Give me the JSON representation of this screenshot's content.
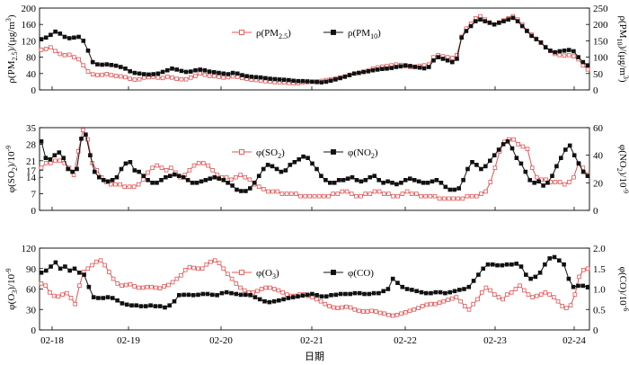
{
  "colors": {
    "left_series": "#e05555",
    "right_series": "#111111"
  },
  "xlabel": "日期",
  "x_tick_labels": [
    "02-18",
    "02-19",
    "02-20",
    "02-21",
    "02-22",
    "02-23",
    "02-24"
  ],
  "chart_data": [
    {
      "type": "line",
      "ylabel_left": "ρ(PM2.5)/(μg/m³)",
      "ylabel_right": "ρ(PM10)/(μg/m³)",
      "ylim_left": [
        0,
        200
      ],
      "ylim_right": [
        0,
        250
      ],
      "yticks_left": [
        "0",
        "40",
        "80",
        "120",
        "160",
        "200"
      ],
      "yticks_right": [
        "0",
        "50",
        "100",
        "150",
        "200",
        "250"
      ],
      "legend": [
        "ρ(PM2.5)",
        "ρ(PM10)"
      ],
      "legend_position": "top-center",
      "series": [
        {
          "name": "ρ(PM2.5)",
          "axis": "left",
          "marker": "open-square",
          "values": [
            98,
            100,
            104,
            95,
            88,
            85,
            86,
            80,
            75,
            60,
            45,
            38,
            36,
            37,
            39,
            36,
            34,
            33,
            31,
            27,
            25,
            26,
            30,
            31,
            32,
            30,
            29,
            32,
            30,
            27,
            26,
            26,
            30,
            34,
            40,
            37,
            34,
            34,
            32,
            30,
            31,
            33,
            32,
            29,
            27,
            25,
            24,
            23,
            21,
            20,
            19,
            19,
            18,
            17,
            16,
            16,
            18,
            19,
            20,
            21,
            22,
            24,
            26,
            28,
            30,
            33,
            37,
            40,
            42,
            44,
            47,
            52,
            55,
            57,
            58,
            60,
            62,
            61,
            58,
            56,
            57,
            59,
            60,
            62,
            80,
            85,
            82,
            80,
            78,
            85,
            130,
            150,
            162,
            175,
            180,
            172,
            165,
            160,
            165,
            170,
            175,
            180,
            172,
            160,
            145,
            135,
            125,
            115,
            105,
            95,
            88,
            85,
            84,
            85,
            82,
            75,
            60,
            50
          ]
        },
        {
          "name": "ρ(PM10)",
          "axis": "right",
          "marker": "filled-square",
          "values": [
            155,
            160,
            168,
            178,
            172,
            162,
            158,
            160,
            162,
            150,
            120,
            85,
            78,
            77,
            78,
            76,
            74,
            70,
            65,
            57,
            52,
            50,
            48,
            47,
            48,
            50,
            55,
            60,
            65,
            62,
            58,
            55,
            56,
            60,
            62,
            60,
            56,
            54,
            52,
            50,
            48,
            52,
            50,
            45,
            42,
            40,
            39,
            38,
            36,
            34,
            33,
            32,
            31,
            30,
            28,
            27,
            27,
            26,
            25,
            24,
            23,
            25,
            28,
            32,
            36,
            40,
            45,
            50,
            52,
            55,
            57,
            60,
            62,
            64,
            65,
            67,
            70,
            72,
            75,
            73,
            70,
            68,
            66,
            70,
            90,
            100,
            95,
            90,
            85,
            95,
            160,
            180,
            195,
            210,
            215,
            210,
            205,
            200,
            205,
            210,
            215,
            220,
            210,
            195,
            180,
            165,
            155,
            145,
            130,
            120,
            115,
            118,
            120,
            122,
            118,
            100,
            85,
            75
          ]
        }
      ]
    },
    {
      "type": "line",
      "ylabel_left": "φ(SO2)/10⁻⁹",
      "ylabel_right": "φ(NO2)/10⁻⁹",
      "ylim_left": [
        0,
        35
      ],
      "ylim_right": [
        0,
        60
      ],
      "yticks_left": [
        "0",
        "7",
        "14",
        "17",
        "21",
        "28",
        "35"
      ],
      "yticks_left_values": [
        0,
        7,
        14,
        17,
        21,
        28,
        35
      ],
      "yticks_right": [
        "0",
        "20",
        "40",
        "60"
      ],
      "legend": [
        "φ(SO2)",
        "φ(NO2)"
      ],
      "legend_position": "top-center",
      "series": [
        {
          "name": "φ(SO2)",
          "axis": "left",
          "marker": "open-square",
          "values": [
            18,
            20,
            20,
            21,
            21,
            20,
            18,
            15,
            25,
            34,
            30,
            20,
            17,
            14,
            12,
            11,
            11,
            11,
            10,
            10,
            10,
            11,
            13,
            16,
            18,
            19,
            18,
            17,
            18,
            16,
            14,
            15,
            17,
            19,
            20,
            20,
            19,
            17,
            15,
            14,
            14,
            13,
            14,
            15,
            14,
            13,
            11,
            10,
            9,
            8,
            8,
            8,
            7,
            7,
            7,
            7,
            6,
            6,
            6,
            6,
            6,
            6,
            6,
            7,
            7,
            8,
            8,
            7,
            6,
            6,
            7,
            7,
            8,
            8,
            7,
            7,
            6,
            6,
            7,
            8,
            7,
            7,
            6,
            6,
            6,
            6,
            5,
            5,
            5,
            5,
            5,
            5,
            6,
            6,
            6,
            7,
            8,
            12,
            18,
            25,
            29,
            30,
            30,
            28,
            27,
            26,
            18,
            14,
            13,
            13,
            12,
            12,
            12,
            11,
            12,
            14,
            20,
            18,
            15
          ]
        },
        {
          "name": "φ(NO2)",
          "axis": "right",
          "marker": "filled-square",
          "values": [
            50,
            38,
            37,
            40,
            42,
            38,
            30,
            28,
            30,
            52,
            55,
            40,
            28,
            24,
            22,
            21,
            22,
            24,
            30,
            34,
            35,
            29,
            28,
            25,
            22,
            20,
            20,
            22,
            24,
            25,
            26,
            25,
            24,
            22,
            20,
            20,
            21,
            22,
            23,
            24,
            23,
            22,
            20,
            18,
            15,
            14,
            14,
            16,
            20,
            25,
            30,
            33,
            32,
            30,
            28,
            29,
            33,
            35,
            37,
            39,
            38,
            34,
            30,
            25,
            22,
            20,
            20,
            22,
            22,
            23,
            24,
            22,
            21,
            22,
            24,
            25,
            22,
            20,
            21,
            20,
            19,
            20,
            22,
            23,
            22,
            21,
            20,
            20,
            21,
            22,
            20,
            17,
            15,
            15,
            16,
            22,
            30,
            35,
            33,
            30,
            32,
            36,
            40,
            44,
            48,
            50,
            45,
            38,
            34,
            28,
            22,
            20,
            21,
            18,
            20,
            25,
            32,
            38,
            44,
            47,
            40,
            34,
            28,
            25
          ]
        }
      ]
    },
    {
      "type": "line",
      "ylabel_left": "φ(O3)/10⁻⁹",
      "ylabel_right": "φ(CO)/10⁻⁶",
      "ylim_left": [
        0,
        120
      ],
      "ylim_right": [
        0,
        2.0
      ],
      "yticks_left": [
        "0",
        "30",
        "60",
        "90",
        "120"
      ],
      "yticks_right": [
        "0",
        "0.5",
        "1.0",
        "1.5",
        "2.0"
      ],
      "legend": [
        "φ(O3)",
        "φ(CO)"
      ],
      "legend_position": "top-center",
      "series": [
        {
          "name": "φ(O3)",
          "axis": "left",
          "marker": "open-square",
          "values": [
            68,
            65,
            55,
            50,
            49,
            52,
            54,
            47,
            38,
            65,
            85,
            90,
            95,
            100,
            102,
            95,
            85,
            75,
            68,
            65,
            66,
            67,
            64,
            62,
            62,
            63,
            63,
            62,
            61,
            64,
            66,
            70,
            75,
            80,
            88,
            92,
            91,
            90,
            90,
            96,
            100,
            102,
            98,
            90,
            82,
            75,
            68,
            62,
            58,
            55,
            55,
            57,
            60,
            62,
            62,
            60,
            58,
            55,
            52,
            50,
            50,
            52,
            52,
            50,
            48,
            45,
            42,
            38,
            35,
            33,
            32,
            33,
            34,
            33,
            30,
            28,
            27,
            27,
            28,
            27,
            25,
            24,
            22,
            21,
            22,
            24,
            26,
            28,
            30,
            32,
            35,
            37,
            38,
            38,
            40,
            42,
            44,
            46,
            48,
            42,
            35,
            30,
            38,
            45,
            55,
            62,
            58,
            52,
            48,
            45,
            52,
            55,
            60,
            65,
            58,
            52,
            48,
            50,
            52,
            55,
            52,
            48,
            42,
            35,
            32,
            36,
            52,
            78,
            88,
            90
          ]
        },
        {
          "name": "φ(CO)",
          "axis": "right",
          "marker": "filled-square",
          "values": [
            1.4,
            1.45,
            1.55,
            1.65,
            1.5,
            1.55,
            1.45,
            1.5,
            1.4,
            1.35,
            1.05,
            0.8,
            0.78,
            0.78,
            0.8,
            0.78,
            0.72,
            0.65,
            0.62,
            0.6,
            0.6,
            0.58,
            0.58,
            0.6,
            0.58,
            0.58,
            0.55,
            0.6,
            0.7,
            0.85,
            0.86,
            0.86,
            0.85,
            0.86,
            0.88,
            0.88,
            0.86,
            0.85,
            0.9,
            0.92,
            0.9,
            0.88,
            0.86,
            0.86,
            0.85,
            0.8,
            0.75,
            0.7,
            0.68,
            0.7,
            0.72,
            0.75,
            0.78,
            0.8,
            0.82,
            0.84,
            0.86,
            0.88,
            0.85,
            0.82,
            0.82,
            0.85,
            0.86,
            0.88,
            0.88,
            0.88,
            0.9,
            0.9,
            0.88,
            0.88,
            0.9,
            0.9,
            0.95,
            1.0,
            1.25,
            1.15,
            1.05,
            1.0,
            0.98,
            0.95,
            0.92,
            0.9,
            0.9,
            0.92,
            0.92,
            0.9,
            0.92,
            0.95,
            0.98,
            1.0,
            1.05,
            1.2,
            1.35,
            1.5,
            1.6,
            1.6,
            1.58,
            1.58,
            1.6,
            1.6,
            1.62,
            1.55,
            1.35,
            1.25,
            1.3,
            1.4,
            1.6,
            1.75,
            1.78,
            1.7,
            1.6,
            1.25,
            1.05,
            1.08,
            1.08,
            1.05
          ]
        }
      ]
    }
  ]
}
